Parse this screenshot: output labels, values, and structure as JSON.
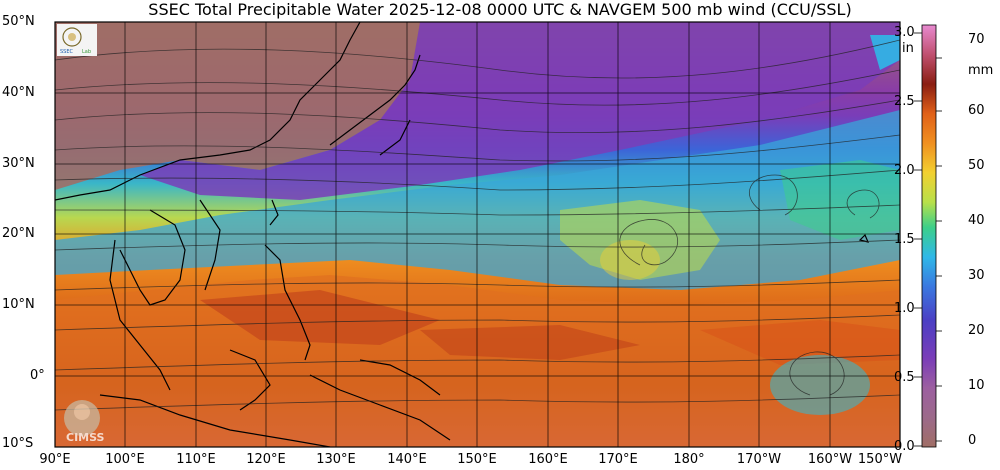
{
  "title": "SSEC Total Precipitable Water  2025-12-08 0000 UTC & NAVGEM 500 mb wind (CCU/SSL)",
  "map": {
    "lat_ticks": [
      "50°N",
      "40°N",
      "30°N",
      "20°N",
      "10°N",
      "0°",
      "10°S"
    ],
    "lon_ticks": [
      "90°E",
      "100°E",
      "110°E",
      "120°E",
      "130°E",
      "140°E",
      "150°E",
      "160°E",
      "170°E",
      "180°",
      "170°W",
      "160°W",
      "150°W"
    ],
    "lat_range": [
      -10,
      50
    ],
    "lon_range": [
      90,
      210
    ]
  },
  "colorbar": {
    "unit_in": "in",
    "unit_mm": "mm",
    "in_ticks": [
      "3.0",
      "2.5",
      "2.0",
      "1.5",
      "1.0",
      "0.5",
      "0.0"
    ],
    "mm_ticks": [
      "70",
      "60",
      "50",
      "40",
      "30",
      "20",
      "10",
      "0"
    ],
    "colors": [
      "#a06e66",
      "#9c5fa0",
      "#7a3db8",
      "#4b3fc4",
      "#3a78e0",
      "#2fb8e8",
      "#3ccf8a",
      "#b8e04a",
      "#f2d030",
      "#f09020",
      "#e06018",
      "#c0401a",
      "#8a1e12",
      "#c05070",
      "#e88ad0"
    ]
  },
  "logos": {
    "top_left": "Space Science and Engineering Center logo",
    "cimss": "CIMSS"
  }
}
